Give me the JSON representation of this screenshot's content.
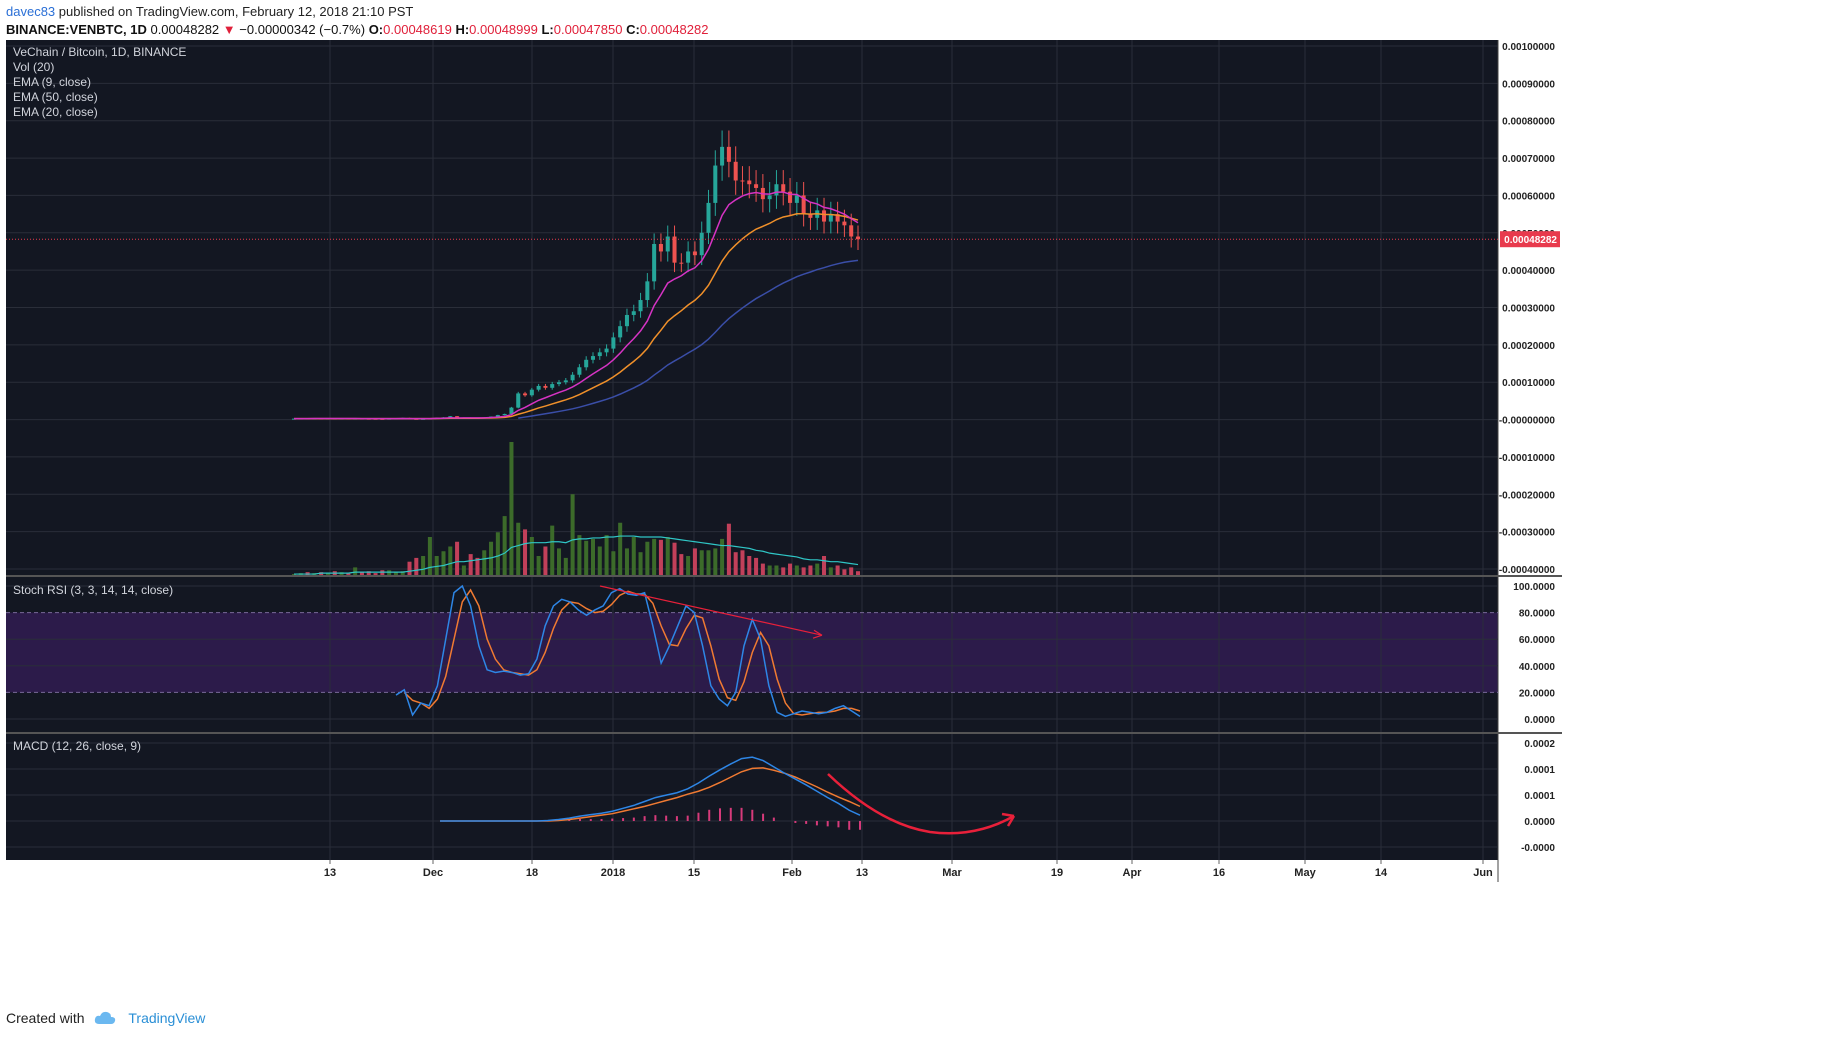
{
  "header": {
    "author": "davec83",
    "published_text": "published on TradingView.com, February 12, 2018 21:10 PST",
    "symbol": "BINANCE:VENBTC, 1D",
    "last": "0.00048282",
    "change": "−0.00000342 (−0.7%)",
    "ohlc": [
      {
        "label": "O:",
        "value": "0.00048619"
      },
      {
        "label": "H:",
        "value": "0.00048999"
      },
      {
        "label": "L:",
        "value": "0.00047850"
      },
      {
        "label": "C:",
        "value": "0.00048282"
      }
    ]
  },
  "legend": {
    "title": "VeChain / Bitcoin, 1D, BINANCE",
    "items": [
      "Vol (20)",
      "EMA (9, close)",
      "EMA (50, close)",
      "EMA (20, close)"
    ]
  },
  "colors": {
    "bg": "#131722",
    "grid": "#2a2e39",
    "up": "#26a69a",
    "down": "#ef5350",
    "vol_up": "#3c6b2a",
    "vol_down": "#c2405a",
    "ema9": "#d633c4",
    "ema20": "#f0902a",
    "ema50": "#3a4ea8",
    "vol_ma": "#2fc6c6",
    "price_line": "#e83a4d",
    "stoch_k": "#2e86e6",
    "stoch_d": "#f07a32",
    "stoch_band": "#2c1b4a",
    "macd": "#2e86e6",
    "signal": "#f07a32",
    "hist": "#d63a7a",
    "annotation": "#e8203a"
  },
  "chart_data": [
    {
      "type": "candlestick",
      "name": "VeChain / Bitcoin, 1D, BINANCE",
      "x_axis_labels": [
        "13",
        "Dec",
        "18",
        "2018",
        "15",
        "Feb",
        "13",
        "Mar",
        "19",
        "Apr",
        "16",
        "May",
        "14",
        "Jun"
      ],
      "y_axis_labels": [
        "0.00100000",
        "0.00090000",
        "0.00080000",
        "0.00070000",
        "0.00060000",
        "0.00050000",
        "0.00040000",
        "0.00030000",
        "0.00020000",
        "0.00010000",
        "-0.00000000",
        "-0.00010000",
        "-0.00020000",
        "-0.00030000",
        "-0.00040000"
      ],
      "ylim": [
        -0.0004,
        0.001
      ],
      "last_price_label": "0.00048282",
      "last_price": 0.00048282,
      "close_series": [
        2.5e-06,
        3e-06,
        2.8e-06,
        3.2e-06,
        2.9e-06,
        3.1e-06,
        2.7e-06,
        3e-06,
        2.6e-06,
        2.8e-06,
        2.4e-06,
        2.2e-06,
        2e-06,
        1.8e-06,
        2.5e-06,
        3e-06,
        4.5e-06,
        2e-06,
        1.5e-06,
        2e-06,
        3.2e-06,
        5e-06,
        6e-06,
        9e-06,
        2e-06,
        5.5e-06,
        4.5e-06,
        4e-06,
        6e-06,
        8e-06,
        1.2e-05,
        1.5e-05,
        3.2e-05,
        7e-05,
        6.5e-05,
        8e-05,
        9e-05,
        8.5e-05,
        9.5e-05,
        0.0001,
        0.000105,
        0.00012,
        0.00014,
        0.00016,
        0.00017,
        0.00018,
        0.00019,
        0.00022,
        0.00025,
        0.00028,
        0.00029,
        0.00032,
        0.00037,
        0.00047,
        0.00045,
        0.00049,
        0.00042,
        0.00042,
        0.00045,
        0.00044,
        0.0005,
        0.00058,
        0.00068,
        0.00073,
        0.00069,
        0.00064,
        0.00064,
        0.00063,
        0.00062,
        0.00059,
        0.0006,
        0.00063,
        0.00061,
        0.00058,
        0.0006,
        0.00055,
        0.00054,
        0.00056,
        0.00053,
        0.00055,
        0.00053,
        0.00052,
        0.00049,
        0.0004828
      ],
      "ema9_series": [
        2.5e-06,
        2.6e-06,
        2.7e-06,
        2.8e-06,
        2.8e-06,
        2.9e-06,
        2.8e-06,
        2.9e-06,
        2.8e-06,
        2.8e-06,
        2.7e-06,
        2.6e-06,
        2.5e-06,
        2.4e-06,
        2.4e-06,
        2.5e-06,
        2.9e-06,
        2.7e-06,
        2.5e-06,
        2.4e-06,
        2.6e-06,
        3.1e-06,
        3.7e-06,
        4.8e-06,
        4.2e-06,
        4.5e-06,
        4.5e-06,
        4.4e-06,
        4.7e-06,
        5.4e-06,
        6.7e-06,
        8.4e-06,
        1.31e-05,
        2.45e-05,
        3.26e-05,
        4.21e-05,
        5.17e-05,
        5.84e-05,
        6.57e-05,
        7.26e-05,
        7.91e-05,
        8.73e-05,
        9.78e-05,
        0.0001103,
        0.0001222,
        0.0001338,
        0.000145,
        0.00016,
        0.000178,
        0.0001984,
        0.0002167,
        0.0002374,
        0.0002639,
        0.0003051,
        0.0003341,
        0.0003653,
        0.0003762,
        0.000385,
        0.000398,
        0.0004064,
        0.0004251,
        0.0004561,
        0.0005009,
        0.0005467,
        0.0005754,
        0.0005883,
        0.0005986,
        0.0006049,
        0.0006079,
        0.0006043,
        0.0006035,
        0.0006088,
        0.000609,
        0.0006032,
        0.0006026,
        0.0005921,
        0.0005817,
        0.0005773,
        0.0005679,
        0.0005643,
        0.0005574,
        0.0005499,
        0.0005379,
        0.0005269
      ],
      "ema20_series": [
        2.5e-06,
        2.5e-06,
        2.6e-06,
        2.6e-06,
        2.6e-06,
        2.7e-06,
        2.7e-06,
        2.7e-06,
        2.7e-06,
        2.7e-06,
        2.7e-06,
        2.6e-06,
        2.6e-06,
        2.5e-06,
        2.5e-06,
        2.6e-06,
        2.7e-06,
        2.7e-06,
        2.6e-06,
        2.5e-06,
        2.6e-06,
        2.8e-06,
        3.1e-06,
        3.6e-06,
        3.5e-06,
        3.6e-06,
        3.7e-06,
        3.7e-06,
        3.9e-06,
        4.3e-06,
        5e-06,
        5.9e-06,
        8.4e-06,
        1.43e-05,
        1.91e-05,
        2.49e-05,
        3.11e-05,
        3.62e-05,
        4.18e-05,
        4.74e-05,
        5.29e-05,
        5.93e-05,
        6.7e-05,
        7.59e-05,
        8.49e-05,
        9.4e-05,
        0.0001031,
        0.0001142,
        0.0001271,
        0.0001417,
        0.0001558,
        0.0001714,
        0.0001904,
        0.000217,
        0.0002392,
        0.0002631,
        0.000278,
        0.0002915,
        0.0003066,
        0.0003193,
        0.0003365,
        0.0003597,
        0.0003921,
        0.0004243,
        0.0004497,
        0.0004678,
        0.0004842,
        0.0004981,
        0.0005097,
        0.0005173,
        0.0005252,
        0.0005352,
        0.0005423,
        0.0005459,
        0.000551,
        0.000551,
        0.00055,
        0.000551,
        0.000549,
        0.000549,
        0.000547,
        0.000544,
        0.000539,
        0.000534
      ],
      "ema50_series": [
        null,
        null,
        null,
        null,
        null,
        null,
        null,
        null,
        null,
        null,
        null,
        null,
        null,
        null,
        null,
        null,
        null,
        null,
        null,
        null,
        null,
        null,
        null,
        null,
        null,
        null,
        null,
        null,
        null,
        null,
        null,
        null,
        null,
        4e-06,
        6.7e-06,
        9.5e-06,
        1.26e-05,
        1.55e-05,
        1.86e-05,
        2.18e-05,
        2.51e-05,
        2.88e-05,
        3.31e-05,
        3.81e-05,
        4.33e-05,
        4.87e-05,
        5.42e-05,
        6.07e-05,
        6.81e-05,
        7.64e-05,
        8.48e-05,
        9.4e-05,
        0.0001049,
        0.0001192,
        0.0001322,
        0.0001462,
        0.0001569,
        0.0001672,
        0.0001783,
        0.0001885,
        0.0002007,
        0.0002156,
        0.0002338,
        0.0002532,
        0.0002703,
        0.0002849,
        0.0002988,
        0.0003118,
        0.0003239,
        0.0003342,
        0.0003445,
        0.0003556,
        0.0003655,
        0.0003738,
        0.0003826,
        0.0003891,
        0.000395,
        0.0004016,
        0.0004066,
        0.0004123,
        0.000417,
        0.0004211,
        0.0004239,
        0.000426
      ],
      "volume_series": [
        1,
        2,
        3,
        2,
        3,
        2,
        4,
        3,
        2,
        8,
        3,
        4,
        2,
        5,
        5,
        3,
        4,
        14,
        18,
        20,
        40,
        20,
        25,
        30,
        35,
        10,
        22,
        18,
        26,
        35,
        45,
        62,
        140,
        55,
        48,
        40,
        20,
        30,
        52,
        28,
        18,
        85,
        42,
        36,
        38,
        30,
        42,
        25,
        55,
        28,
        40,
        24,
        35,
        38,
        37,
        40,
        34,
        22,
        20,
        28,
        26,
        26,
        28,
        38,
        54,
        24,
        26,
        20,
        18,
        12,
        10,
        10,
        8,
        12,
        10,
        8,
        10,
        12,
        20,
        8,
        10,
        6,
        8,
        4
      ],
      "volume_ma_series": [
        1,
        1,
        1,
        1,
        2,
        2,
        2,
        2,
        2,
        3,
        3,
        3,
        3,
        3,
        3,
        3,
        3,
        4,
        5,
        6,
        8,
        9,
        10,
        12,
        14,
        14,
        15,
        16,
        17,
        18,
        20,
        23,
        29,
        31,
        33,
        34,
        34,
        34,
        35,
        35,
        34,
        37,
        38,
        38,
        39,
        39,
        40,
        40,
        41,
        41,
        41,
        40,
        40,
        40,
        40,
        39,
        38,
        37,
        36,
        35,
        34,
        33,
        32,
        31,
        31,
        30,
        29,
        28,
        26,
        25,
        23,
        22,
        21,
        20,
        19,
        17,
        16,
        16,
        15,
        14,
        14,
        13,
        12,
        11
      ],
      "up_down": [
        "u",
        "u",
        "d",
        "u",
        "d",
        "u",
        "d",
        "u",
        "d",
        "u",
        "d",
        "d",
        "d",
        "d",
        "u",
        "u",
        "u",
        "d",
        "d",
        "u",
        "u",
        "u",
        "u",
        "u",
        "d",
        "u",
        "d",
        "d",
        "u",
        "u",
        "u",
        "u",
        "u",
        "u",
        "d",
        "u",
        "u",
        "d",
        "u",
        "u",
        "u",
        "u",
        "u",
        "u",
        "u",
        "u",
        "u",
        "u",
        "u",
        "u",
        "u",
        "u",
        "u",
        "u",
        "d",
        "u",
        "d",
        "d",
        "u",
        "d",
        "u",
        "u",
        "u",
        "u",
        "d",
        "d",
        "d",
        "d",
        "d",
        "d",
        "u",
        "u",
        "d",
        "d",
        "u",
        "d",
        "d",
        "u",
        "d",
        "u",
        "d",
        "d",
        "d",
        "d"
      ]
    },
    {
      "type": "line",
      "name": "Stoch RSI (3, 3, 14, 14, close)",
      "y_axis_labels": [
        "100.0000",
        "80.0000",
        "60.0000",
        "40.0000",
        "20.0000",
        "0.0000"
      ],
      "ylim": [
        0,
        100
      ],
      "band": [
        20,
        80
      ],
      "k_series": [
        18,
        22,
        3,
        12,
        10,
        25,
        60,
        95,
        100,
        85,
        55,
        37,
        35,
        36,
        35,
        33,
        34,
        45,
        70,
        85,
        90,
        88,
        82,
        78,
        82,
        85,
        95,
        98,
        94,
        93,
        95,
        70,
        42,
        55,
        70,
        85,
        80,
        55,
        25,
        15,
        10,
        20,
        55,
        75,
        60,
        25,
        5,
        2,
        4,
        6,
        5,
        4,
        5,
        8,
        10,
        6,
        2
      ],
      "d_series": [
        null,
        20,
        14,
        12,
        8,
        15,
        32,
        60,
        88,
        97,
        85,
        60,
        45,
        37,
        35,
        34,
        33,
        37,
        50,
        68,
        82,
        88,
        87,
        83,
        80,
        81,
        86,
        93,
        96,
        94,
        94,
        87,
        70,
        56,
        55,
        68,
        78,
        76,
        55,
        30,
        16,
        14,
        28,
        50,
        65,
        55,
        30,
        12,
        4,
        3,
        4,
        5,
        5,
        6,
        8,
        8,
        6
      ],
      "annotation": "trendline from ~100 sloping down to ~63 with arrow"
    },
    {
      "type": "line",
      "name": "MACD (12, 26, close, 9)",
      "y_axis_labels": [
        "0.0002",
        "0.0001",
        "0.0001",
        "0.0000",
        "-0.0000"
      ],
      "macd_series": [
        0,
        0,
        0,
        0,
        0,
        0,
        0,
        0,
        0,
        0,
        1e-06,
        3e-06,
        6e-06,
        1e-05,
        1.3e-05,
        1.6e-05,
        2e-05,
        2.6e-05,
        3.2e-05,
        4e-05,
        4.8e-05,
        5.3e-05,
        5.8e-05,
        6.6e-05,
        7.8e-05,
        9.2e-05,
        0.000105,
        0.000117,
        0.000128,
        0.000131,
        0.000124,
        0.000111,
        9.8e-05,
        8.6e-05,
        7.4e-05,
        6.1e-05,
        4.8e-05,
        3.6e-05,
        2.2e-05,
        1.2e-05
      ],
      "signal_series": [
        0,
        0,
        0,
        0,
        0,
        0,
        0,
        0,
        0,
        0,
        0,
        1e-06,
        3e-06,
        6e-06,
        9e-06,
        1.2e-05,
        1.5e-05,
        2e-05,
        2.5e-05,
        3e-05,
        3.6e-05,
        4.2e-05,
        4.8e-05,
        5.5e-05,
        6.1e-05,
        6.9e-05,
        7.9e-05,
        9e-05,
        0.000101,
        0.000108,
        0.000109,
        0.000104,
        9.8e-05,
        9e-05,
        8e-05,
        7e-05,
        5.9e-05,
        4.9e-05,
        4e-05,
        3e-05
      ],
      "histogram_series": [
        0,
        0,
        0,
        0,
        0,
        0,
        0,
        0,
        0,
        0,
        1e-06,
        2e-06,
        3e-06,
        4e-06,
        4e-06,
        4e-06,
        5e-06,
        6e-06,
        7e-06,
        1e-05,
        1.2e-05,
        1.1e-05,
        1e-05,
        1.1e-05,
        1.7e-05,
        2.3e-05,
        2.6e-05,
        2.7e-05,
        2.7e-05,
        2.3e-05,
        1.5e-05,
        7e-06,
        0,
        -4e-06,
        -6e-06,
        -9e-06,
        -1.1e-05,
        -1.3e-05,
        -1.8e-05,
        -1.8e-05
      ],
      "annotation": "hand-drawn red arrow curving down then up to the right"
    }
  ],
  "footer": {
    "created_with": "Created with",
    "brand": "TradingView"
  }
}
